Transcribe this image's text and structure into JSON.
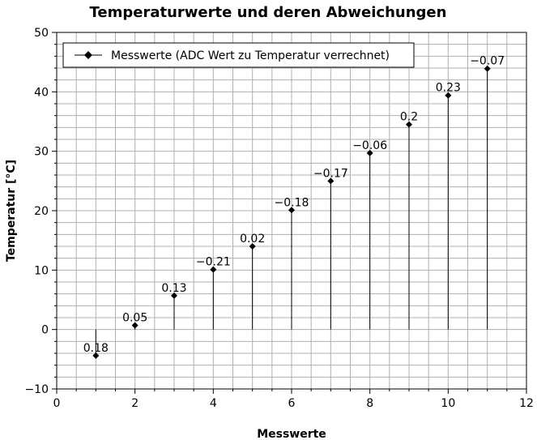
{
  "chart_data": {
    "type": "scatter",
    "title": "Temperaturwerte und deren Abweichungen",
    "xlabel": "Messwerte",
    "ylabel": "Temperatur [°C]",
    "xlim": [
      0,
      12
    ],
    "ylim": [
      -10,
      50
    ],
    "x_ticks": [
      0,
      2,
      4,
      6,
      8,
      10,
      12
    ],
    "y_ticks": [
      -10,
      0,
      10,
      20,
      30,
      40,
      50
    ],
    "grid": true,
    "legend_position": "top-left",
    "stems": true,
    "series": [
      {
        "name": "Messwerte (ADC Wert zu Temperatur verrechnet)",
        "color": "#000000",
        "x": [
          1,
          2,
          3,
          4,
          5,
          6,
          7,
          8,
          9,
          10,
          11
        ],
        "y": [
          -4.4,
          0.7,
          5.7,
          10.1,
          14.0,
          20.1,
          25.0,
          29.7,
          34.5,
          39.4,
          43.9
        ],
        "labels": [
          "0.18",
          "0.05",
          "0.13",
          "−0.21",
          "0.02",
          "−0.18",
          "−0.17",
          "−0.06",
          "0.2",
          "0.23",
          "−0.07"
        ]
      }
    ]
  }
}
